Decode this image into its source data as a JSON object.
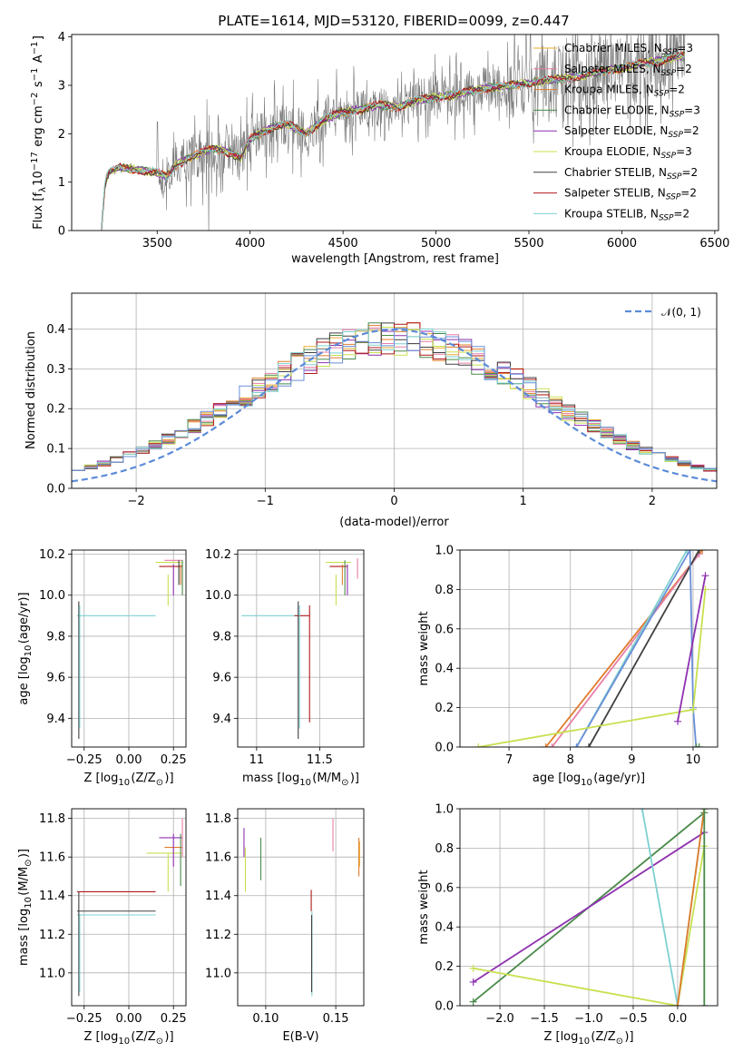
{
  "title": "PLATE=1614, MJD=53120, FIBERID=0099, z=0.447",
  "colors": {
    "chabrier_miles": "#e8aa2c",
    "salpeter_miles": "#e87fa8",
    "kroupa_miles": "#e07b2a",
    "chabrier_elodie": "#4a8a4a",
    "salpeter_elodie": "#8e30b0",
    "kroupa_elodie": "#c8e050",
    "chabrier_stelib": "#404040",
    "salpeter_stelib": "#b01818",
    "kroupa_stelib": "#7ed0d0",
    "data": "#7a7a7a",
    "normal": "#5b8bd9",
    "blue": "#6a8fd8"
  },
  "chart_data": [
    {
      "id": "spectrum",
      "type": "line",
      "xlabel": "wavelength [Angstrom, rest frame]",
      "ylabel": "Flux [f$_\\lambda$10$^{-17}$ erg cm$^{-2}$ s$^{-1}$ A$^{-1}$]",
      "ylabel_parts": {
        "pre": "Flux [f",
        "sub1": "λ",
        "mid": "10",
        "sup1": "−17",
        "mid2": " erg cm",
        "sup2": "−2",
        "mid3": " s",
        "sup3": "−1",
        "mid4": " A",
        "sup4": "−1",
        "post": "]"
      },
      "xlim": [
        3040,
        6520
      ],
      "ylim": [
        0,
        4.05
      ],
      "xticks": [
        3500,
        4000,
        4500,
        5000,
        5500,
        6000,
        6500
      ],
      "yticks": [
        0,
        1,
        2,
        3,
        4
      ],
      "grid": false,
      "legend_position": "top-right",
      "legend": [
        {
          "name": "Chabrier MILES",
          "nssp": "3",
          "color_key": "chabrier_miles"
        },
        {
          "name": "Salpeter MILES",
          "nssp": "2",
          "color_key": "salpeter_miles"
        },
        {
          "name": "Kroupa MILES",
          "nssp": "2",
          "color_key": "kroupa_miles"
        },
        {
          "name": "Chabrier ELODIE",
          "nssp": "3",
          "color_key": "chabrier_elodie"
        },
        {
          "name": "Salpeter ELODIE",
          "nssp": "2",
          "color_key": "salpeter_elodie"
        },
        {
          "name": "Kroupa ELODIE",
          "nssp": "3",
          "color_key": "kroupa_elodie"
        },
        {
          "name": "Chabrier STELIB",
          "nssp": "2",
          "color_key": "chabrier_stelib"
        },
        {
          "name": "Salpeter STELIB",
          "nssp": "2",
          "color_key": "salpeter_stelib"
        },
        {
          "name": "Kroupa STELIB",
          "nssp": "2",
          "color_key": "kroupa_stelib"
        }
      ],
      "legend_nssp_label": "N",
      "legend_nssp_sub": "SSP",
      "continuum": [
        [
          3200,
          0
        ],
        [
          3220,
          1.0
        ],
        [
          3240,
          1.2
        ],
        [
          3300,
          1.3
        ],
        [
          3400,
          1.25
        ],
        [
          3500,
          1.2
        ],
        [
          3550,
          1.1
        ],
        [
          3600,
          1.35
        ],
        [
          3700,
          1.55
        ],
        [
          3800,
          1.7
        ],
        [
          3900,
          1.6
        ],
        [
          3950,
          1.5
        ],
        [
          4000,
          1.9
        ],
        [
          4100,
          2.1
        ],
        [
          4200,
          2.2
        ],
        [
          4300,
          2.0
        ],
        [
          4400,
          2.3
        ],
        [
          4500,
          2.45
        ],
        [
          4600,
          2.5
        ],
        [
          4700,
          2.6
        ],
        [
          4800,
          2.55
        ],
        [
          4900,
          2.7
        ],
        [
          5000,
          2.75
        ],
        [
          5100,
          2.8
        ],
        [
          5200,
          2.9
        ],
        [
          5300,
          2.95
        ],
        [
          5400,
          3.0
        ],
        [
          5500,
          3.05
        ],
        [
          5600,
          3.1
        ],
        [
          5700,
          3.15
        ],
        [
          5800,
          3.2
        ],
        [
          5900,
          3.3
        ],
        [
          6000,
          3.35
        ],
        [
          6100,
          3.45
        ],
        [
          6200,
          3.5
        ],
        [
          6300,
          3.6
        ],
        [
          6340,
          3.6
        ]
      ]
    },
    {
      "id": "residuals",
      "type": "histogram",
      "xlabel": "(data-model)/error",
      "ylabel": "Normed distribution",
      "xlim": [
        -2.5,
        2.5
      ],
      "ylim": [
        0,
        0.49
      ],
      "xticks": [
        -2,
        -1,
        0,
        1,
        2
      ],
      "yticks": [
        0.0,
        0.1,
        0.2,
        0.3,
        0.4
      ],
      "grid": true,
      "legend_position": "top-right",
      "normal_label": "𝒩(0, 1)",
      "bin_width": 0.1
    },
    {
      "id": "age_vs_Z",
      "type": "errorbar",
      "xlabel": "Z [log$_{10}$(Z/Z$_\\odot$)]",
      "ylabel": "age  [log$_{10}$(age/yr)]",
      "xlim": [
        -0.32,
        0.32
      ],
      "ylim": [
        9.26,
        10.22
      ],
      "xticks": [
        -0.25,
        0.0,
        0.25
      ],
      "xtick_labels": [
        "−0.25",
        "0.00",
        "0.25"
      ],
      "yticks": [
        9.4,
        9.6,
        9.8,
        10.0,
        10.2
      ],
      "grid": true
    },
    {
      "id": "age_vs_mass",
      "type": "errorbar",
      "xlabel": "mass [log$_{10}$(M/M$_\\odot$)]",
      "xlim": [
        10.85,
        11.85
      ],
      "ylim": [
        9.26,
        10.22
      ],
      "xticks": [
        11.0,
        11.5
      ],
      "yticks": [
        9.4,
        9.6,
        9.8,
        10.0,
        10.2
      ],
      "grid": true
    },
    {
      "id": "weight_vs_age",
      "type": "line",
      "xlabel": "age  [log$_{10}$(age/yr)]",
      "ylabel": "mass weight",
      "xlim": [
        6.2,
        10.4
      ],
      "ylim": [
        0,
        1.0
      ],
      "xticks": [
        7,
        8,
        9,
        10
      ],
      "yticks": [
        0.0,
        0.2,
        0.4,
        0.6,
        0.8,
        1.0
      ],
      "grid": true,
      "series": [
        {
          "color_key": "kroupa_miles",
          "x": [
            7.6,
            10.15
          ],
          "y": [
            0.0,
            1.0
          ]
        },
        {
          "color_key": "salpeter_miles",
          "x": [
            7.7,
            10.1
          ],
          "y": [
            0.0,
            0.98
          ]
        },
        {
          "color_key": "chabrier_stelib",
          "x": [
            8.3,
            10.1
          ],
          "y": [
            0.0,
            1.0
          ]
        },
        {
          "color_key": "kroupa_stelib",
          "x": [
            8.1,
            9.9
          ],
          "y": [
            0.0,
            1.0
          ]
        },
        {
          "color_key": "blue",
          "x": [
            8.1,
            9.95,
            10.0,
            10.05
          ],
          "y": [
            0.0,
            1.0,
            0.2,
            0.0
          ]
        },
        {
          "color_key": "kroupa_elodie",
          "x": [
            6.5,
            10.0,
            10.2
          ],
          "y": [
            0.0,
            0.19,
            0.8
          ]
        },
        {
          "color_key": "salpeter_elodie",
          "x": [
            9.75,
            10.2
          ],
          "y": [
            0.13,
            0.87
          ]
        },
        {
          "color_key": "chabrier_elodie",
          "x": [
            10.05,
            10.1
          ],
          "y": [
            0.0,
            0.0
          ]
        }
      ]
    },
    {
      "id": "mass_vs_Z",
      "type": "errorbar",
      "xlabel": "Z [log$_{10}$(Z/Z$_\\odot$)]",
      "ylabel": "mass [log$_{10}$(M/M$_\\odot$)]",
      "xlim": [
        -0.32,
        0.32
      ],
      "ylim": [
        10.83,
        11.85
      ],
      "xticks": [
        -0.25,
        0.0,
        0.25
      ],
      "xtick_labels": [
        "−0.25",
        "0.00",
        "0.25"
      ],
      "yticks": [
        11.0,
        11.2,
        11.4,
        11.6,
        11.8
      ],
      "grid": true
    },
    {
      "id": "mass_vs_ebv",
      "type": "errorbar",
      "xlabel": "E(B-V)",
      "xlim": [
        0.08,
        0.17
      ],
      "ylim": [
        10.83,
        11.85
      ],
      "xticks": [
        0.1,
        0.15
      ],
      "xtick_labels": [
        "0.10",
        "0.15"
      ],
      "yticks": [
        11.0,
        11.2,
        11.4,
        11.6,
        11.8
      ],
      "grid": true
    },
    {
      "id": "weight_vs_Z",
      "type": "line",
      "xlabel": "Z [log$_{10}$(Z/Z$_\\odot$)]",
      "ylabel": "mass weight",
      "xlim": [
        -2.45,
        0.45
      ],
      "ylim": [
        0,
        1.0
      ],
      "xticks": [
        -2.0,
        -1.5,
        -1.0,
        -0.5,
        0.0
      ],
      "xtick_labels": [
        "−2.0",
        "−1.5",
        "−1.0",
        "−0.5",
        "0.0"
      ],
      "yticks": [
        0.0,
        0.2,
        0.4,
        0.6,
        0.8,
        1.0
      ],
      "grid": true,
      "series": [
        {
          "color_key": "chabrier_elodie",
          "x": [
            -2.3,
            0.3
          ],
          "y": [
            0.02,
            0.98
          ]
        },
        {
          "color_key": "salpeter_elodie",
          "x": [
            -2.3,
            0.3
          ],
          "y": [
            0.12,
            0.88
          ]
        },
        {
          "color_key": "kroupa_elodie",
          "x": [
            -2.3,
            0.0,
            0.3
          ],
          "y": [
            0.19,
            0.0,
            0.81
          ]
        },
        {
          "color_key": "kroupa_stelib",
          "x": [
            -0.4,
            0.0,
            0.3
          ],
          "y": [
            1.0,
            0.0,
            1.0
          ]
        },
        {
          "color_key": "kroupa_miles",
          "x": [
            0.0,
            0.3
          ],
          "y": [
            0.0,
            1.0
          ]
        },
        {
          "color_key": "chabrier_elodie",
          "x": [
            0.3,
            0.3
          ],
          "y": [
            0.0,
            1.0
          ]
        }
      ]
    }
  ]
}
